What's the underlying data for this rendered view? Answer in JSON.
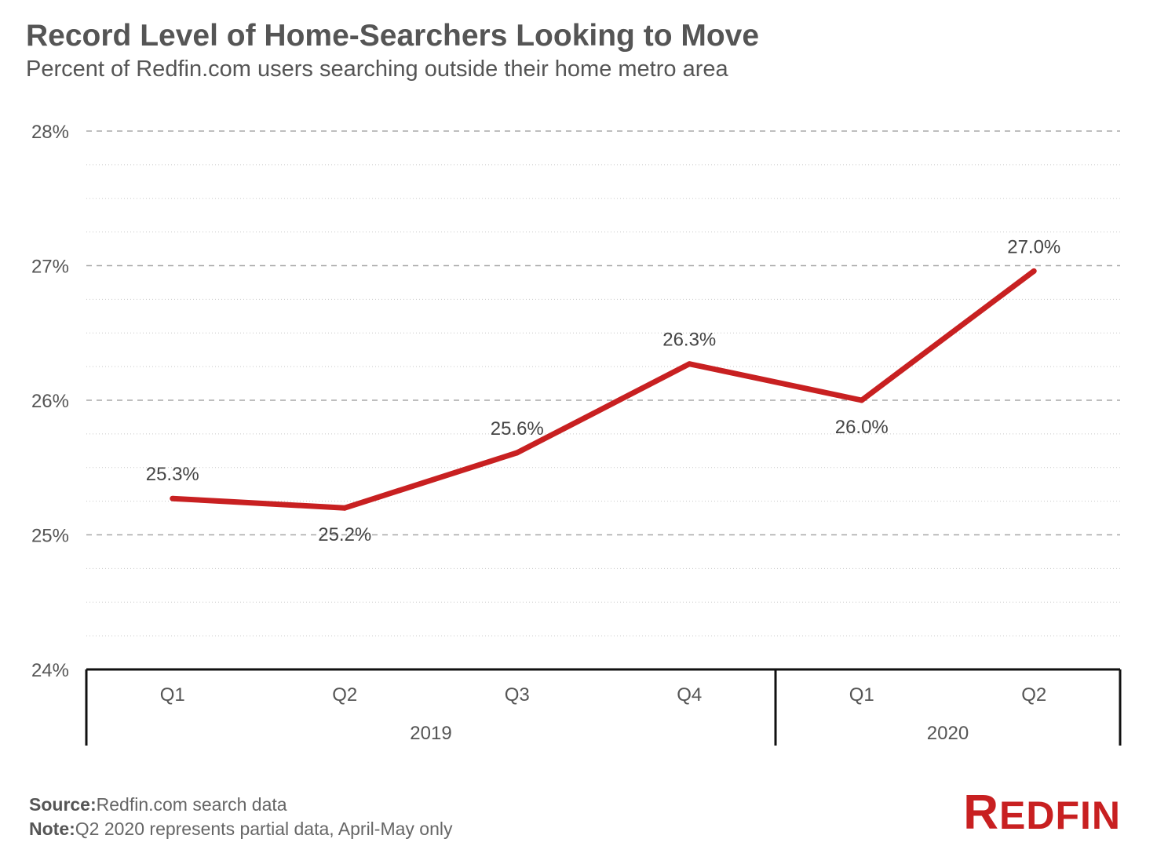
{
  "title": "Record Level of Home-Searchers Looking to Move",
  "subtitle": "Percent of Redfin.com users searching outside their home metro area",
  "footer": {
    "source_label": "Source:",
    "source_text": "Redfin.com search data",
    "note_label": "Note:",
    "note_text": "Q2 2020 represents partial data, April-May only"
  },
  "logo": {
    "first": "R",
    "rest": "EDFIN"
  },
  "colors": {
    "line": "#c82021",
    "text": "#555555",
    "grid": "#aaaaaa"
  },
  "chart_data": {
    "type": "line",
    "categories": [
      "Q1",
      "Q2",
      "Q3",
      "Q4",
      "Q1",
      "Q2"
    ],
    "groups": [
      {
        "label": "2019",
        "start": 0,
        "end": 3
      },
      {
        "label": "2020",
        "start": 4,
        "end": 5
      }
    ],
    "series": [
      {
        "values": [
          25.27,
          25.2,
          25.61,
          26.27,
          26.0,
          26.96
        ]
      }
    ],
    "data_labels": [
      "25.3%",
      "25.2%",
      "25.6%",
      "26.3%",
      "26.0%",
      "27.0%"
    ],
    "label_positions": [
      "above",
      "below",
      "above",
      "above",
      "below",
      "above"
    ],
    "ylim": [
      24,
      28
    ],
    "yticks": [
      24,
      25,
      26,
      27,
      28
    ],
    "ytick_labels": [
      "24%",
      "25%",
      "26%",
      "27%",
      "28%"
    ],
    "grid": true,
    "legend": false
  }
}
